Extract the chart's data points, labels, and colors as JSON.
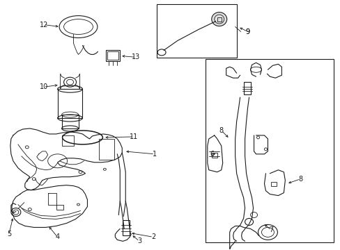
{
  "bg_color": "#ffffff",
  "line_color": "#1a1a1a",
  "fig_width": 4.89,
  "fig_height": 3.6,
  "dpi": 100,
  "label_fontsize": 7.0
}
